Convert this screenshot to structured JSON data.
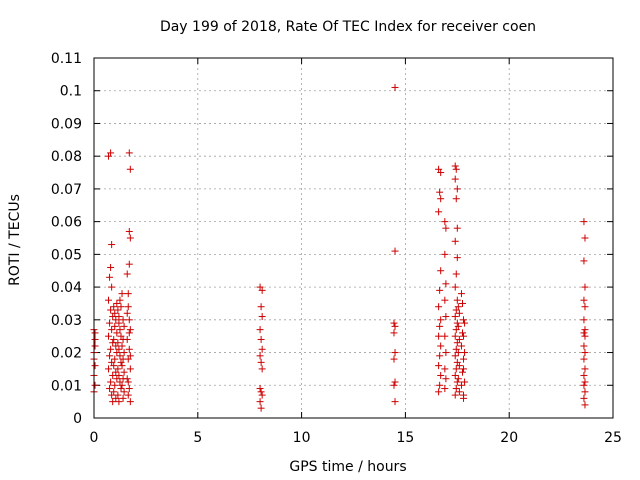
{
  "chart_data": {
    "type": "scatter",
    "title": "Day 199 of 2018, Rate Of TEC Index for receiver coen",
    "xlabel": "GPS time / hours",
    "ylabel": "ROTI / TECUs",
    "xlim": [
      0,
      25
    ],
    "ylim": [
      0,
      0.11
    ],
    "xticks": [
      "0",
      "5",
      "10",
      "15",
      "20",
      "25"
    ],
    "yticks": [
      "0",
      "0.01",
      "0.02",
      "0.03",
      "0.04",
      "0.05",
      "0.06",
      "0.07",
      "0.08",
      "0.09",
      "0.1",
      "0.11"
    ],
    "grid": true,
    "marker": "+",
    "series": [
      {
        "color": "#cc0000",
        "points": [
          [
            0.0,
            0.027
          ],
          [
            0.05,
            0.024
          ],
          [
            0.0,
            0.02
          ],
          [
            0.05,
            0.016
          ],
          [
            0.0,
            0.013
          ],
          [
            0.05,
            0.01
          ],
          [
            0.0,
            0.008
          ],
          [
            0.05,
            0.022
          ],
          [
            0.0,
            0.018
          ],
          [
            0.05,
            0.026
          ],
          [
            0.7,
            0.08
          ],
          [
            0.8,
            0.081
          ],
          [
            0.85,
            0.053
          ],
          [
            0.8,
            0.046
          ],
          [
            0.75,
            0.043
          ],
          [
            0.85,
            0.04
          ],
          [
            0.7,
            0.036
          ],
          [
            0.8,
            0.033
          ],
          [
            0.9,
            0.031
          ],
          [
            0.75,
            0.029
          ],
          [
            0.85,
            0.027
          ],
          [
            0.7,
            0.025
          ],
          [
            0.9,
            0.023
          ],
          [
            0.8,
            0.021
          ],
          [
            0.75,
            0.019
          ],
          [
            0.85,
            0.017
          ],
          [
            0.7,
            0.015
          ],
          [
            0.9,
            0.013
          ],
          [
            0.8,
            0.011
          ],
          [
            0.75,
            0.009
          ],
          [
            0.85,
            0.007
          ],
          [
            0.9,
            0.005
          ],
          [
            0.95,
            0.034
          ],
          [
            1.0,
            0.032
          ],
          [
            1.05,
            0.03
          ],
          [
            1.0,
            0.028
          ],
          [
            1.1,
            0.026
          ],
          [
            0.95,
            0.024
          ],
          [
            1.05,
            0.022
          ],
          [
            1.1,
            0.02
          ],
          [
            1.0,
            0.018
          ],
          [
            0.95,
            0.016
          ],
          [
            1.05,
            0.014
          ],
          [
            1.1,
            0.012
          ],
          [
            1.0,
            0.01
          ],
          [
            0.95,
            0.008
          ],
          [
            1.05,
            0.006
          ],
          [
            1.1,
            0.035
          ],
          [
            1.15,
            0.033
          ],
          [
            1.2,
            0.031
          ],
          [
            1.25,
            0.036
          ],
          [
            1.3,
            0.034
          ],
          [
            1.2,
            0.029
          ],
          [
            1.25,
            0.027
          ],
          [
            1.3,
            0.025
          ],
          [
            1.15,
            0.023
          ],
          [
            1.2,
            0.021
          ],
          [
            1.25,
            0.019
          ],
          [
            1.3,
            0.017
          ],
          [
            1.15,
            0.015
          ],
          [
            1.2,
            0.013
          ],
          [
            1.25,
            0.011
          ],
          [
            1.3,
            0.009
          ],
          [
            1.15,
            0.007
          ],
          [
            1.2,
            0.005
          ],
          [
            1.35,
            0.038
          ],
          [
            1.4,
            0.03
          ],
          [
            1.45,
            0.028
          ],
          [
            1.4,
            0.024
          ],
          [
            1.35,
            0.022
          ],
          [
            1.45,
            0.02
          ],
          [
            1.4,
            0.018
          ],
          [
            1.35,
            0.016
          ],
          [
            1.45,
            0.014
          ],
          [
            1.4,
            0.012
          ],
          [
            1.35,
            0.01
          ],
          [
            1.45,
            0.008
          ],
          [
            1.4,
            0.006
          ],
          [
            1.6,
            0.044
          ],
          [
            1.65,
            0.038
          ],
          [
            1.7,
            0.081
          ],
          [
            1.75,
            0.076
          ],
          [
            1.7,
            0.057
          ],
          [
            1.75,
            0.055
          ],
          [
            1.7,
            0.047
          ],
          [
            1.65,
            0.034
          ],
          [
            1.7,
            0.03
          ],
          [
            1.75,
            0.027
          ],
          [
            1.6,
            0.024
          ],
          [
            1.7,
            0.021
          ],
          [
            1.65,
            0.018
          ],
          [
            1.75,
            0.015
          ],
          [
            1.6,
            0.012
          ],
          [
            1.7,
            0.009
          ],
          [
            1.65,
            0.007
          ],
          [
            1.75,
            0.005
          ],
          [
            1.6,
            0.032
          ],
          [
            1.7,
            0.026
          ],
          [
            1.75,
            0.019
          ],
          [
            1.65,
            0.011
          ],
          [
            8.0,
            0.04
          ],
          [
            8.1,
            0.039
          ],
          [
            8.05,
            0.034
          ],
          [
            8.1,
            0.031
          ],
          [
            8.0,
            0.027
          ],
          [
            8.05,
            0.024
          ],
          [
            8.1,
            0.021
          ],
          [
            8.0,
            0.019
          ],
          [
            8.05,
            0.017
          ],
          [
            8.1,
            0.015
          ],
          [
            8.0,
            0.009
          ],
          [
            8.05,
            0.008
          ],
          [
            8.1,
            0.007
          ],
          [
            8.0,
            0.005
          ],
          [
            8.05,
            0.003
          ],
          [
            14.5,
            0.101
          ],
          [
            14.5,
            0.051
          ],
          [
            14.45,
            0.029
          ],
          [
            14.5,
            0.028
          ],
          [
            14.45,
            0.026
          ],
          [
            14.5,
            0.02
          ],
          [
            14.45,
            0.018
          ],
          [
            14.5,
            0.011
          ],
          [
            14.45,
            0.01
          ],
          [
            14.5,
            0.005
          ],
          [
            16.6,
            0.076
          ],
          [
            16.7,
            0.075
          ],
          [
            16.65,
            0.069
          ],
          [
            16.7,
            0.067
          ],
          [
            16.6,
            0.063
          ],
          [
            16.7,
            0.045
          ],
          [
            16.65,
            0.039
          ],
          [
            16.6,
            0.034
          ],
          [
            16.7,
            0.03
          ],
          [
            16.65,
            0.028
          ],
          [
            16.6,
            0.025
          ],
          [
            16.7,
            0.022
          ],
          [
            16.65,
            0.019
          ],
          [
            16.6,
            0.016
          ],
          [
            16.7,
            0.013
          ],
          [
            16.65,
            0.01
          ],
          [
            16.6,
            0.008
          ],
          [
            16.9,
            0.06
          ],
          [
            16.95,
            0.058
          ],
          [
            16.9,
            0.05
          ],
          [
            16.95,
            0.041
          ],
          [
            16.9,
            0.036
          ],
          [
            16.95,
            0.031
          ],
          [
            16.9,
            0.025
          ],
          [
            16.95,
            0.02
          ],
          [
            16.9,
            0.015
          ],
          [
            16.95,
            0.012
          ],
          [
            16.9,
            0.009
          ],
          [
            17.4,
            0.077
          ],
          [
            17.45,
            0.076
          ],
          [
            17.4,
            0.073
          ],
          [
            17.5,
            0.07
          ],
          [
            17.45,
            0.067
          ],
          [
            17.5,
            0.058
          ],
          [
            17.4,
            0.054
          ],
          [
            17.5,
            0.049
          ],
          [
            17.45,
            0.044
          ],
          [
            17.4,
            0.04
          ],
          [
            17.5,
            0.036
          ],
          [
            17.45,
            0.033
          ],
          [
            17.4,
            0.031
          ],
          [
            17.5,
            0.029
          ],
          [
            17.45,
            0.027
          ],
          [
            17.4,
            0.025
          ],
          [
            17.5,
            0.023
          ],
          [
            17.45,
            0.021
          ],
          [
            17.4,
            0.019
          ],
          [
            17.5,
            0.017
          ],
          [
            17.45,
            0.015
          ],
          [
            17.4,
            0.013
          ],
          [
            17.5,
            0.011
          ],
          [
            17.45,
            0.009
          ],
          [
            17.4,
            0.007
          ],
          [
            17.55,
            0.034
          ],
          [
            17.6,
            0.032
          ],
          [
            17.55,
            0.028
          ],
          [
            17.6,
            0.024
          ],
          [
            17.55,
            0.02
          ],
          [
            17.6,
            0.016
          ],
          [
            17.55,
            0.012
          ],
          [
            17.6,
            0.008
          ],
          [
            17.7,
            0.038
          ],
          [
            17.75,
            0.035
          ],
          [
            17.8,
            0.03
          ],
          [
            17.75,
            0.026
          ],
          [
            17.7,
            0.022
          ],
          [
            17.8,
            0.018
          ],
          [
            17.75,
            0.014
          ],
          [
            17.7,
            0.01
          ],
          [
            17.8,
            0.006
          ],
          [
            17.85,
            0.029
          ],
          [
            17.8,
            0.025
          ],
          [
            17.85,
            0.02
          ],
          [
            17.8,
            0.015
          ],
          [
            17.85,
            0.011
          ],
          [
            17.8,
            0.007
          ],
          [
            23.6,
            0.06
          ],
          [
            23.65,
            0.055
          ],
          [
            23.6,
            0.048
          ],
          [
            23.65,
            0.04
          ],
          [
            23.6,
            0.036
          ],
          [
            23.65,
            0.034
          ],
          [
            23.6,
            0.03
          ],
          [
            23.65,
            0.027
          ],
          [
            23.6,
            0.026
          ],
          [
            23.65,
            0.025
          ],
          [
            23.6,
            0.022
          ],
          [
            23.65,
            0.02
          ],
          [
            23.6,
            0.018
          ],
          [
            23.65,
            0.015
          ],
          [
            23.6,
            0.013
          ],
          [
            23.65,
            0.011
          ],
          [
            23.6,
            0.01
          ],
          [
            23.65,
            0.008
          ],
          [
            23.6,
            0.006
          ],
          [
            23.65,
            0.004
          ]
        ]
      }
    ]
  }
}
